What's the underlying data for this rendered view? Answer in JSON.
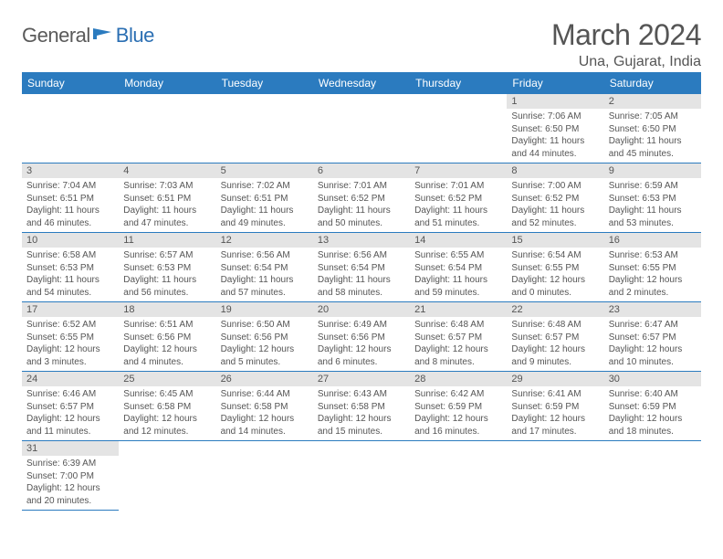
{
  "logo": {
    "general": "General",
    "blue": "Blue",
    "flag_color": "#2b7bbf"
  },
  "title": "March 2024",
  "location": "Una, Gujarat, India",
  "day_headers": [
    "Sunday",
    "Monday",
    "Tuesday",
    "Wednesday",
    "Thursday",
    "Friday",
    "Saturday"
  ],
  "header_bg": "#2b7bbf",
  "daynum_bg": "#e4e4e4",
  "border_color": "#2b7bbf",
  "text_color": "#555555",
  "weeks": [
    [
      null,
      null,
      null,
      null,
      null,
      {
        "d": "1",
        "sunrise": "Sunrise: 7:06 AM",
        "sunset": "Sunset: 6:50 PM",
        "daylight": "Daylight: 11 hours and 44 minutes."
      },
      {
        "d": "2",
        "sunrise": "Sunrise: 7:05 AM",
        "sunset": "Sunset: 6:50 PM",
        "daylight": "Daylight: 11 hours and 45 minutes."
      }
    ],
    [
      {
        "d": "3",
        "sunrise": "Sunrise: 7:04 AM",
        "sunset": "Sunset: 6:51 PM",
        "daylight": "Daylight: 11 hours and 46 minutes."
      },
      {
        "d": "4",
        "sunrise": "Sunrise: 7:03 AM",
        "sunset": "Sunset: 6:51 PM",
        "daylight": "Daylight: 11 hours and 47 minutes."
      },
      {
        "d": "5",
        "sunrise": "Sunrise: 7:02 AM",
        "sunset": "Sunset: 6:51 PM",
        "daylight": "Daylight: 11 hours and 49 minutes."
      },
      {
        "d": "6",
        "sunrise": "Sunrise: 7:01 AM",
        "sunset": "Sunset: 6:52 PM",
        "daylight": "Daylight: 11 hours and 50 minutes."
      },
      {
        "d": "7",
        "sunrise": "Sunrise: 7:01 AM",
        "sunset": "Sunset: 6:52 PM",
        "daylight": "Daylight: 11 hours and 51 minutes."
      },
      {
        "d": "8",
        "sunrise": "Sunrise: 7:00 AM",
        "sunset": "Sunset: 6:52 PM",
        "daylight": "Daylight: 11 hours and 52 minutes."
      },
      {
        "d": "9",
        "sunrise": "Sunrise: 6:59 AM",
        "sunset": "Sunset: 6:53 PM",
        "daylight": "Daylight: 11 hours and 53 minutes."
      }
    ],
    [
      {
        "d": "10",
        "sunrise": "Sunrise: 6:58 AM",
        "sunset": "Sunset: 6:53 PM",
        "daylight": "Daylight: 11 hours and 54 minutes."
      },
      {
        "d": "11",
        "sunrise": "Sunrise: 6:57 AM",
        "sunset": "Sunset: 6:53 PM",
        "daylight": "Daylight: 11 hours and 56 minutes."
      },
      {
        "d": "12",
        "sunrise": "Sunrise: 6:56 AM",
        "sunset": "Sunset: 6:54 PM",
        "daylight": "Daylight: 11 hours and 57 minutes."
      },
      {
        "d": "13",
        "sunrise": "Sunrise: 6:56 AM",
        "sunset": "Sunset: 6:54 PM",
        "daylight": "Daylight: 11 hours and 58 minutes."
      },
      {
        "d": "14",
        "sunrise": "Sunrise: 6:55 AM",
        "sunset": "Sunset: 6:54 PM",
        "daylight": "Daylight: 11 hours and 59 minutes."
      },
      {
        "d": "15",
        "sunrise": "Sunrise: 6:54 AM",
        "sunset": "Sunset: 6:55 PM",
        "daylight": "Daylight: 12 hours and 0 minutes."
      },
      {
        "d": "16",
        "sunrise": "Sunrise: 6:53 AM",
        "sunset": "Sunset: 6:55 PM",
        "daylight": "Daylight: 12 hours and 2 minutes."
      }
    ],
    [
      {
        "d": "17",
        "sunrise": "Sunrise: 6:52 AM",
        "sunset": "Sunset: 6:55 PM",
        "daylight": "Daylight: 12 hours and 3 minutes."
      },
      {
        "d": "18",
        "sunrise": "Sunrise: 6:51 AM",
        "sunset": "Sunset: 6:56 PM",
        "daylight": "Daylight: 12 hours and 4 minutes."
      },
      {
        "d": "19",
        "sunrise": "Sunrise: 6:50 AM",
        "sunset": "Sunset: 6:56 PM",
        "daylight": "Daylight: 12 hours and 5 minutes."
      },
      {
        "d": "20",
        "sunrise": "Sunrise: 6:49 AM",
        "sunset": "Sunset: 6:56 PM",
        "daylight": "Daylight: 12 hours and 6 minutes."
      },
      {
        "d": "21",
        "sunrise": "Sunrise: 6:48 AM",
        "sunset": "Sunset: 6:57 PM",
        "daylight": "Daylight: 12 hours and 8 minutes."
      },
      {
        "d": "22",
        "sunrise": "Sunrise: 6:48 AM",
        "sunset": "Sunset: 6:57 PM",
        "daylight": "Daylight: 12 hours and 9 minutes."
      },
      {
        "d": "23",
        "sunrise": "Sunrise: 6:47 AM",
        "sunset": "Sunset: 6:57 PM",
        "daylight": "Daylight: 12 hours and 10 minutes."
      }
    ],
    [
      {
        "d": "24",
        "sunrise": "Sunrise: 6:46 AM",
        "sunset": "Sunset: 6:57 PM",
        "daylight": "Daylight: 12 hours and 11 minutes."
      },
      {
        "d": "25",
        "sunrise": "Sunrise: 6:45 AM",
        "sunset": "Sunset: 6:58 PM",
        "daylight": "Daylight: 12 hours and 12 minutes."
      },
      {
        "d": "26",
        "sunrise": "Sunrise: 6:44 AM",
        "sunset": "Sunset: 6:58 PM",
        "daylight": "Daylight: 12 hours and 14 minutes."
      },
      {
        "d": "27",
        "sunrise": "Sunrise: 6:43 AM",
        "sunset": "Sunset: 6:58 PM",
        "daylight": "Daylight: 12 hours and 15 minutes."
      },
      {
        "d": "28",
        "sunrise": "Sunrise: 6:42 AM",
        "sunset": "Sunset: 6:59 PM",
        "daylight": "Daylight: 12 hours and 16 minutes."
      },
      {
        "d": "29",
        "sunrise": "Sunrise: 6:41 AM",
        "sunset": "Sunset: 6:59 PM",
        "daylight": "Daylight: 12 hours and 17 minutes."
      },
      {
        "d": "30",
        "sunrise": "Sunrise: 6:40 AM",
        "sunset": "Sunset: 6:59 PM",
        "daylight": "Daylight: 12 hours and 18 minutes."
      }
    ],
    [
      {
        "d": "31",
        "sunrise": "Sunrise: 6:39 AM",
        "sunset": "Sunset: 7:00 PM",
        "daylight": "Daylight: 12 hours and 20 minutes."
      },
      null,
      null,
      null,
      null,
      null,
      null
    ]
  ]
}
